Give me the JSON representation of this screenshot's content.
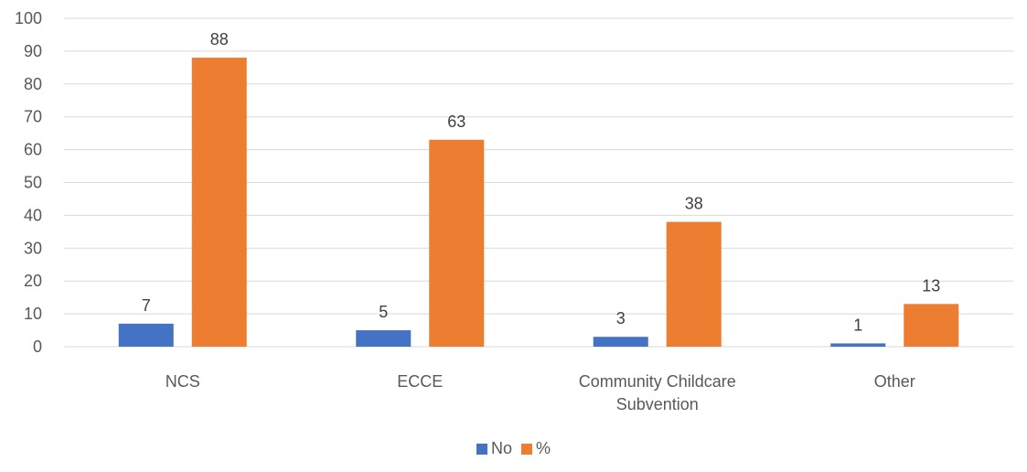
{
  "chart_data": {
    "type": "bar",
    "categories": [
      [
        "NCS"
      ],
      [
        "ECCE"
      ],
      [
        "Community Childcare",
        "Subvention"
      ],
      [
        "Other"
      ]
    ],
    "series": [
      {
        "name": "No",
        "values": [
          7,
          5,
          3,
          1
        ],
        "color": "#4472C4"
      },
      {
        "name": "%",
        "values": [
          88,
          63,
          38,
          13
        ],
        "color": "#ED7D31"
      }
    ],
    "ylim": [
      0,
      100
    ],
    "yticks": [
      0,
      10,
      20,
      30,
      40,
      50,
      60,
      70,
      80,
      90,
      100
    ],
    "grid": true,
    "legend_position": "bottom",
    "title": "",
    "xlabel": "",
    "ylabel": ""
  }
}
